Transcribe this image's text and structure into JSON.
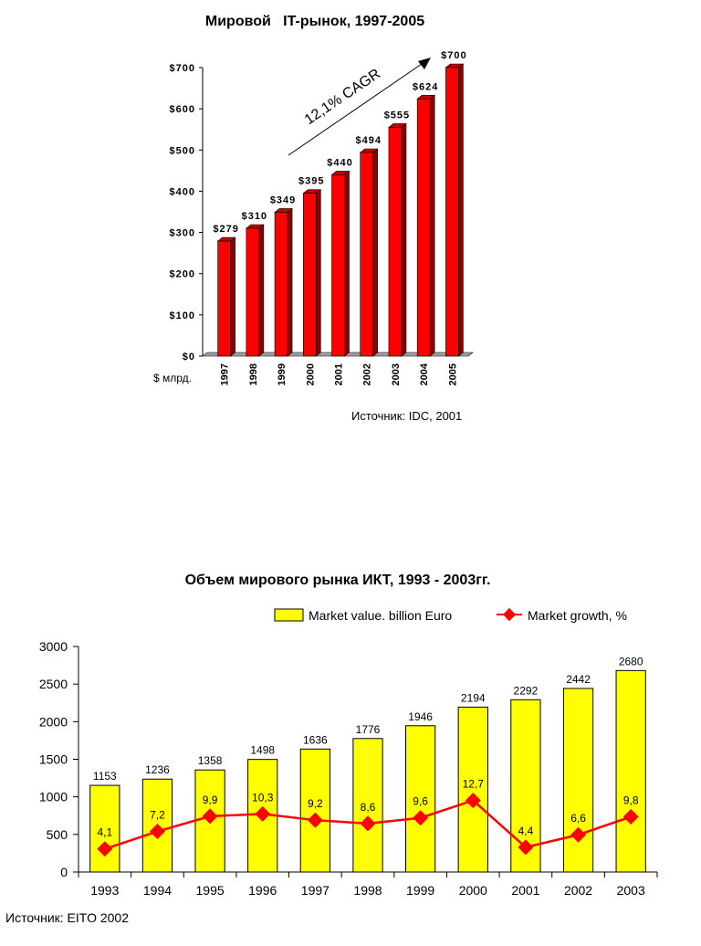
{
  "chart_data": [
    {
      "type": "bar",
      "title": "Мировой   IT-рынок, 1997-2005",
      "unit_label": "$ млрд.",
      "source": "Источник: IDC, 2001",
      "annotation": "12,1% CAGR",
      "categories": [
        "1997",
        "1998",
        "1999",
        "2000",
        "2001",
        "2002",
        "2003",
        "2004",
        "2005"
      ],
      "values": [
        279,
        310,
        349,
        395,
        440,
        494,
        555,
        624,
        700
      ],
      "data_labels": [
        "$279",
        "$310",
        "$349",
        "$395",
        "$440",
        "$494",
        "$555",
        "$624",
        "$700"
      ],
      "yticks": [
        0,
        100,
        200,
        300,
        400,
        500,
        600,
        700
      ],
      "ytick_labels": [
        "$0",
        "$100",
        "$200",
        "$300",
        "$400",
        "$500",
        "$600",
        "$700"
      ],
      "ylim": [
        0,
        700
      ],
      "grid": false,
      "colors": {
        "bar_front": "#ff0000",
        "bar_side": "#8a0000",
        "bar_top": "#c00000",
        "floor": "#a0a0a0"
      }
    },
    {
      "type": "bar",
      "title": "Объем мирового рынка ИКТ, 1993 - 2003гг.",
      "source": "Источник: EITO 2002",
      "legend_position": "top-right",
      "categories": [
        "1993",
        "1994",
        "1995",
        "1996",
        "1997",
        "1998",
        "1999",
        "2000",
        "2001",
        "2002",
        "2003"
      ],
      "series": [
        {
          "name": "Market value. billion Euro",
          "type": "bar",
          "values": [
            1153,
            1236,
            1358,
            1498,
            1636,
            1776,
            1946,
            2194,
            2292,
            2442,
            2680
          ],
          "data_labels": [
            "1153",
            "1236",
            "1358",
            "1498",
            "1636",
            "1776",
            "1946",
            "2194",
            "2292",
            "2442",
            "2680"
          ],
          "color": "#ffff00"
        },
        {
          "name": "Market growth, %",
          "type": "line",
          "values": [
            4.1,
            7.2,
            9.9,
            10.3,
            9.2,
            8.6,
            9.6,
            12.7,
            4.4,
            6.6,
            9.8
          ],
          "data_labels": [
            "4,1",
            "7,2",
            "9,9",
            "10,3",
            "9,2",
            "8,6",
            "9,6",
            "12,7",
            "4,4",
            "6,6",
            "9,8"
          ],
          "color": "#ff0000"
        }
      ],
      "yticks": [
        0,
        500,
        1000,
        1500,
        2000,
        2500,
        3000
      ],
      "ytick_labels": [
        "0",
        "500",
        "1000",
        "1500",
        "2000",
        "2500",
        "3000"
      ],
      "ylim": [
        0,
        3000
      ],
      "grid": false
    }
  ]
}
